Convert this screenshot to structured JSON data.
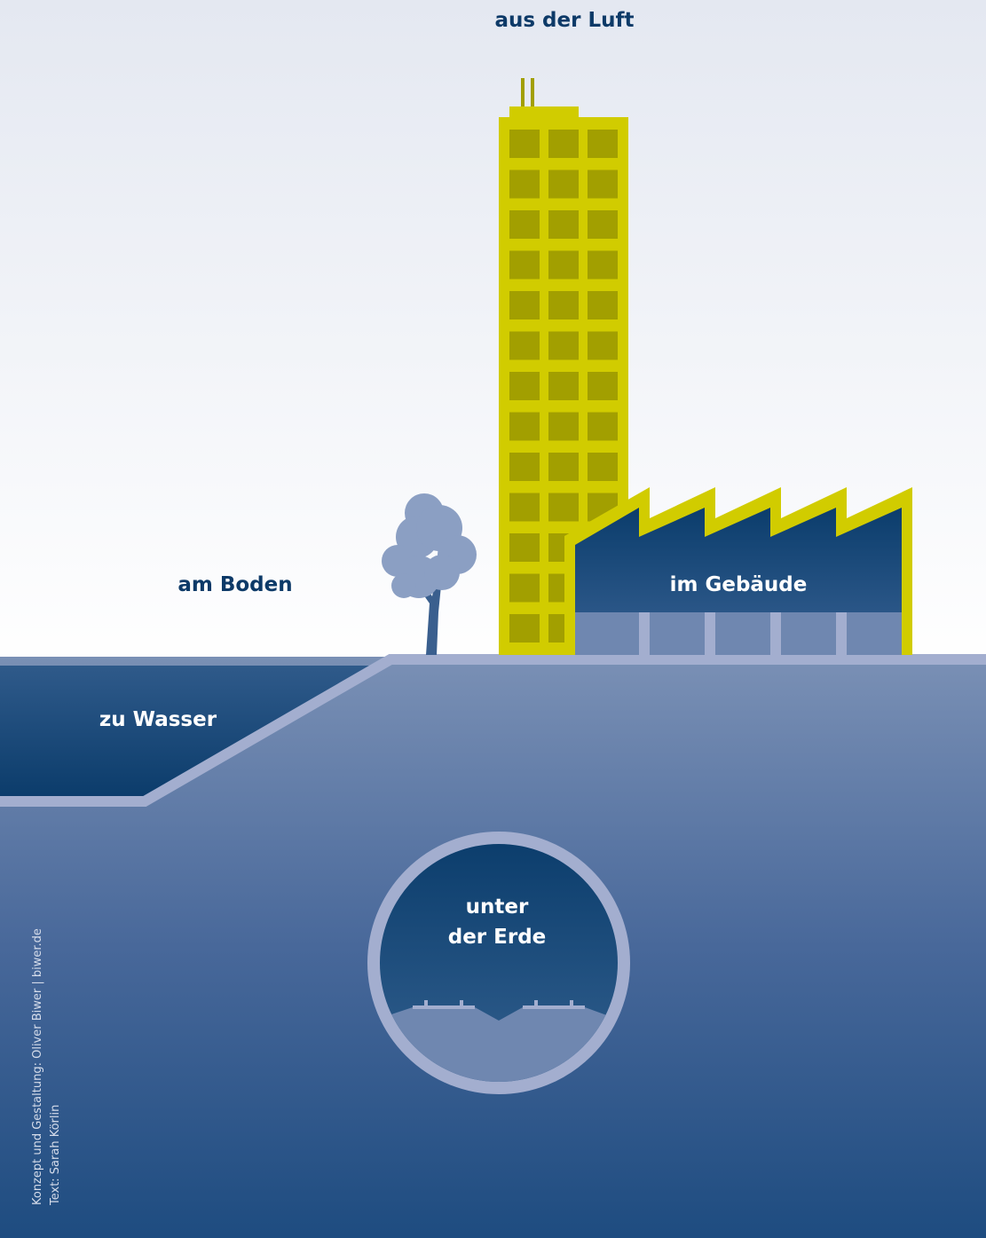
{
  "labels": {
    "air": "aus der Luft",
    "ground": "am Boden",
    "building": "im Gebäude",
    "water": "zu Wasser",
    "underground": [
      "unter",
      "der Erde"
    ]
  },
  "credits": [
    "Konzept und Gestaltung: Oliver Biwer | biwer.de",
    "Text: Sarah Körlin"
  ]
}
